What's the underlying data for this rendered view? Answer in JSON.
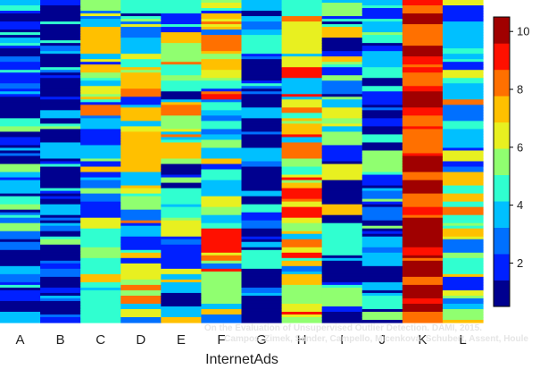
{
  "chart_data": {
    "type": "heatmap",
    "title": "",
    "xlabel": "InternetAds",
    "ylabel": "",
    "categories": [
      "A",
      "B",
      "C",
      "D",
      "E",
      "F",
      "G",
      "H",
      "I",
      "J",
      "K",
      "L"
    ],
    "rows_description": "ranking positions of the outlier-detection methods across parameter settings; rows are not labeled",
    "colorbar": {
      "ticks": [
        2,
        4,
        6,
        8,
        10
      ],
      "range": [
        0.5,
        10.5
      ],
      "colormap": [
        "#00008f",
        "#0020ff",
        "#0070ff",
        "#00c0ff",
        "#30ffd0",
        "#90ff70",
        "#e8f020",
        "#ffc000",
        "#ff7000",
        "#ff1000",
        "#a00000"
      ]
    },
    "grid": false,
    "legend": "right",
    "column_profile": [
      {
        "category": "A",
        "typical_rank": 2.5,
        "spread": 3.5
      },
      {
        "category": "B",
        "typical_rank": 2.4,
        "spread": 3.2
      },
      {
        "category": "C",
        "typical_rank": 5.5,
        "spread": 3.5
      },
      {
        "category": "D",
        "typical_rank": 5.2,
        "spread": 3.8
      },
      {
        "category": "E",
        "typical_rank": 5.0,
        "spread": 4.5
      },
      {
        "category": "F",
        "typical_rank": 6.0,
        "spread": 4.0
      },
      {
        "category": "G",
        "typical_rank": 2.0,
        "spread": 3.0
      },
      {
        "category": "H",
        "typical_rank": 6.5,
        "spread": 3.5
      },
      {
        "category": "I",
        "typical_rank": 3.5,
        "spread": 4.5
      },
      {
        "category": "J",
        "typical_rank": 3.5,
        "spread": 3.0
      },
      {
        "category": "K",
        "typical_rank": 10.0,
        "spread": 1.5
      },
      {
        "category": "L",
        "typical_rank": 5.5,
        "spread": 3.5
      }
    ]
  },
  "watermark": {
    "line1": "On the Evaluation of Unsupervised Outlier Detection. DAMI, 2015.",
    "line2": "Campos, Zimek, Sander, Campello, Micenková, Schubert, Assent, Houle"
  }
}
